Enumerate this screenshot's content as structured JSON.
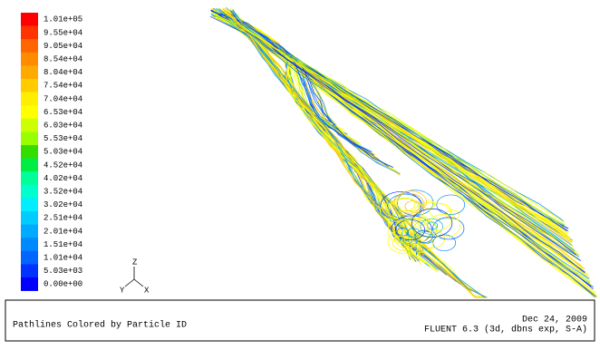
{
  "legend": {
    "entries": [
      {
        "label": "1.01e+05",
        "color": "#ff0000"
      },
      {
        "label": "9.55e+04",
        "color": "#ff3300"
      },
      {
        "label": "9.05e+04",
        "color": "#ff6600"
      },
      {
        "label": "8.54e+04",
        "color": "#ff8c00"
      },
      {
        "label": "8.04e+04",
        "color": "#ffaa00"
      },
      {
        "label": "7.54e+04",
        "color": "#ffcc00"
      },
      {
        "label": "7.04e+04",
        "color": "#ffee00"
      },
      {
        "label": "6.53e+04",
        "color": "#ffff00"
      },
      {
        "label": "6.03e+04",
        "color": "#ccff00"
      },
      {
        "label": "5.53e+04",
        "color": "#99ff00"
      },
      {
        "label": "5.03e+04",
        "color": "#33dd00"
      },
      {
        "label": "4.52e+04",
        "color": "#00ee44"
      },
      {
        "label": "4.02e+04",
        "color": "#00ff99"
      },
      {
        "label": "3.52e+04",
        "color": "#00ffcc"
      },
      {
        "label": "3.02e+04",
        "color": "#00eeff"
      },
      {
        "label": "2.51e+04",
        "color": "#00ccff"
      },
      {
        "label": "2.01e+04",
        "color": "#00aaff"
      },
      {
        "label": "1.51e+04",
        "color": "#0088ff"
      },
      {
        "label": "1.01e+04",
        "color": "#0066ff"
      },
      {
        "label": "5.03e+03",
        "color": "#0033ff"
      },
      {
        "label": "0.00e+00",
        "color": "#0000ff"
      }
    ]
  },
  "axes_triad": {
    "labels": [
      "Z",
      "Y",
      "X"
    ]
  },
  "footer": {
    "title": "Pathlines Colored by Particle ID",
    "date": "Dec 24, 2009",
    "solver": "FLUENT 6.3 (3d, dbns exp, S-A)"
  }
}
